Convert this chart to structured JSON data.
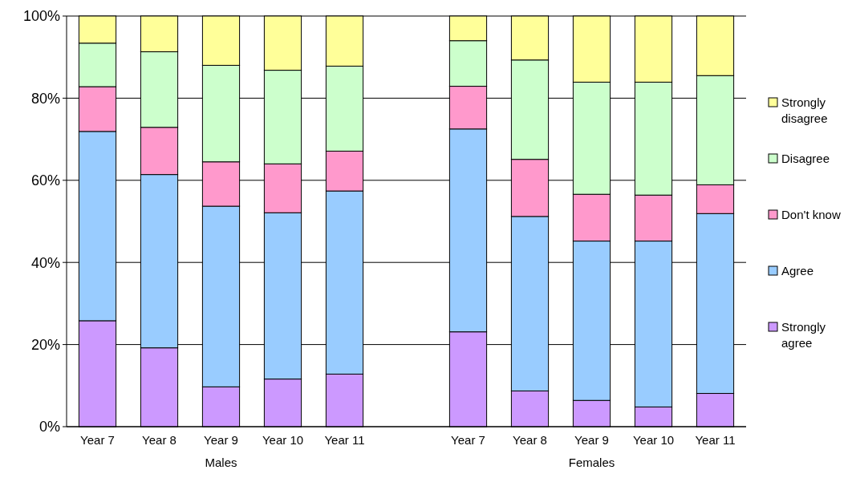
{
  "chart_data": {
    "type": "bar",
    "stacked": true,
    "categories": [
      "Year 7",
      "Year 8",
      "Year 9",
      "Year 10",
      "Year 11",
      null,
      "Year 7",
      "Year 8",
      "Year 9",
      "Year 10",
      "Year 11"
    ],
    "series": [
      {
        "name": "Strongly agree",
        "color": "#cc99ff",
        "values": [
          25.8,
          19.2,
          9.7,
          11.6,
          12.8,
          null,
          23.1,
          8.7,
          6.4,
          4.8,
          8.1
        ]
      },
      {
        "name": "Agree",
        "color": "#99ccff",
        "values": [
          46.1,
          42.2,
          44.0,
          40.5,
          44.6,
          null,
          49.4,
          42.5,
          38.8,
          40.4,
          43.8
        ]
      },
      {
        "name": "Don't know",
        "color": "#ff99cc",
        "values": [
          10.9,
          11.5,
          10.8,
          11.9,
          9.7,
          null,
          10.4,
          13.9,
          11.4,
          11.2,
          7.0
        ]
      },
      {
        "name": "Disagree",
        "color": "#ccffcc",
        "values": [
          10.6,
          18.4,
          23.5,
          22.8,
          20.7,
          null,
          11.1,
          24.2,
          27.3,
          27.5,
          26.6
        ]
      },
      {
        "name": "Strongly disagree",
        "color": "#ffff99",
        "values": [
          6.6,
          8.7,
          12.0,
          13.2,
          12.2,
          null,
          6.0,
          10.7,
          16.1,
          16.1,
          14.5
        ]
      }
    ],
    "ylim": [
      0,
      100
    ],
    "yticks": [
      {
        "value": 0,
        "label": "0%"
      },
      {
        "value": 20,
        "label": "20%"
      },
      {
        "value": 40,
        "label": "40%"
      },
      {
        "value": 60,
        "label": "60%"
      },
      {
        "value": 80,
        "label": "80%"
      },
      {
        "value": 100,
        "label": "100%"
      }
    ],
    "grid": "y",
    "legend": "right",
    "annotations": [
      "Males",
      "Females"
    ]
  }
}
